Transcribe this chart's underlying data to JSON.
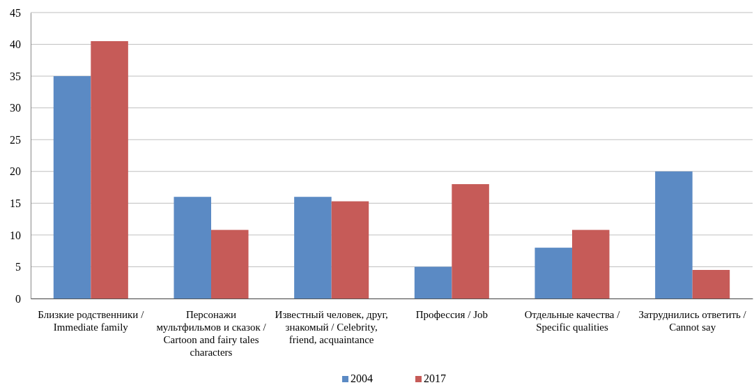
{
  "chart_data": {
    "type": "bar",
    "categories": [
      "Близкие родственники / Immediate family",
      "Персонажи мультфильмов и сказок / Cartoon and fairy tales characters",
      "Известный человек, друг, знакомый / Celebrity, friend, acquaintance",
      "Профессия / Job",
      "Отдельные качества / Specific qualities",
      "Затруднились ответить / Cannot say"
    ],
    "series": [
      {
        "name": "2004",
        "color": "#5b8ac4",
        "values": [
          35,
          16,
          16,
          5,
          8,
          20
        ]
      },
      {
        "name": "2017",
        "color": "#c65b58",
        "values": [
          40.5,
          10.8,
          15.3,
          18,
          10.8,
          4.5
        ]
      }
    ],
    "ylim": [
      0,
      45
    ],
    "yticks": [
      0,
      5,
      10,
      15,
      20,
      25,
      30,
      35,
      40,
      45
    ],
    "grid": "y",
    "legend": "bottom"
  }
}
